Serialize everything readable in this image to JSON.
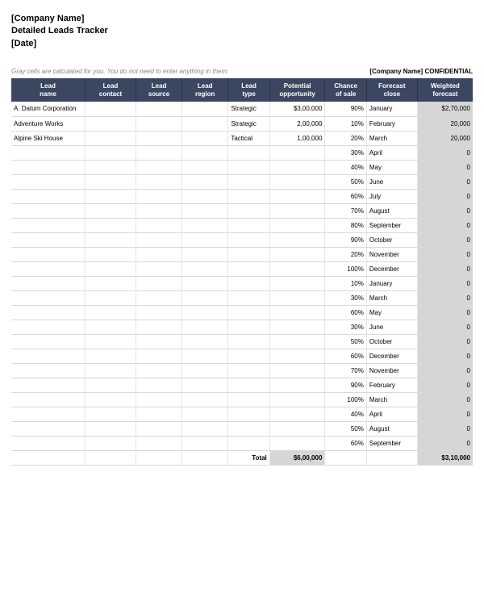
{
  "header": {
    "company": "[Company Name]",
    "title": "Detailed Leads Tracker",
    "date": "[Date]"
  },
  "subhead": {
    "gray_note": "Gray cells are calculated for you. You do not need to enter anything in them.",
    "conf_company": "[Company Name]",
    "conf_label": "CONFIDENTIAL"
  },
  "columns": [
    "Lead name",
    "Lead contact",
    "Lead source",
    "Lead region",
    "Lead type",
    "Potential opportunity",
    "Chance of sale",
    "Forecast close",
    "Weighted forecast"
  ],
  "rows": [
    {
      "name": "A. Datum Corporation",
      "contact": "",
      "source": "",
      "region": "",
      "type": "Strategic",
      "opp": "$3,00,000",
      "chance": "90%",
      "close": "January",
      "weighted": "$2,70,000"
    },
    {
      "name": "Adventure Works",
      "contact": "",
      "source": "",
      "region": "",
      "type": "Strategic",
      "opp": "2,00,000",
      "chance": "10%",
      "close": "February",
      "weighted": "20,000"
    },
    {
      "name": "Alpine Ski House",
      "contact": "",
      "source": "",
      "region": "",
      "type": "Tactical",
      "opp": "1,00,000",
      "chance": "20%",
      "close": "March",
      "weighted": "20,000"
    },
    {
      "name": "",
      "contact": "",
      "source": "",
      "region": "",
      "type": "",
      "opp": "",
      "chance": "30%",
      "close": "April",
      "weighted": "0"
    },
    {
      "name": "",
      "contact": "",
      "source": "",
      "region": "",
      "type": "",
      "opp": "",
      "chance": "40%",
      "close": "May",
      "weighted": "0"
    },
    {
      "name": "",
      "contact": "",
      "source": "",
      "region": "",
      "type": "",
      "opp": "",
      "chance": "50%",
      "close": "June",
      "weighted": "0"
    },
    {
      "name": "",
      "contact": "",
      "source": "",
      "region": "",
      "type": "",
      "opp": "",
      "chance": "60%",
      "close": "July",
      "weighted": "0"
    },
    {
      "name": "",
      "contact": "",
      "source": "",
      "region": "",
      "type": "",
      "opp": "",
      "chance": "70%",
      "close": "August",
      "weighted": "0"
    },
    {
      "name": "",
      "contact": "",
      "source": "",
      "region": "",
      "type": "",
      "opp": "",
      "chance": "80%",
      "close": "September",
      "weighted": "0"
    },
    {
      "name": "",
      "contact": "",
      "source": "",
      "region": "",
      "type": "",
      "opp": "",
      "chance": "90%",
      "close": "October",
      "weighted": "0"
    },
    {
      "name": "",
      "contact": "",
      "source": "",
      "region": "",
      "type": "",
      "opp": "",
      "chance": "20%",
      "close": "November",
      "weighted": "0"
    },
    {
      "name": "",
      "contact": "",
      "source": "",
      "region": "",
      "type": "",
      "opp": "",
      "chance": "100%",
      "close": "December",
      "weighted": "0"
    },
    {
      "name": "",
      "contact": "",
      "source": "",
      "region": "",
      "type": "",
      "opp": "",
      "chance": "10%",
      "close": "January",
      "weighted": "0"
    },
    {
      "name": "",
      "contact": "",
      "source": "",
      "region": "",
      "type": "",
      "opp": "",
      "chance": "30%",
      "close": "March",
      "weighted": "0"
    },
    {
      "name": "",
      "contact": "",
      "source": "",
      "region": "",
      "type": "",
      "opp": "",
      "chance": "60%",
      "close": "May",
      "weighted": "0"
    },
    {
      "name": "",
      "contact": "",
      "source": "",
      "region": "",
      "type": "",
      "opp": "",
      "chance": "30%",
      "close": "June",
      "weighted": "0"
    },
    {
      "name": "",
      "contact": "",
      "source": "",
      "region": "",
      "type": "",
      "opp": "",
      "chance": "50%",
      "close": "October",
      "weighted": "0"
    },
    {
      "name": "",
      "contact": "",
      "source": "",
      "region": "",
      "type": "",
      "opp": "",
      "chance": "60%",
      "close": "December",
      "weighted": "0"
    },
    {
      "name": "",
      "contact": "",
      "source": "",
      "region": "",
      "type": "",
      "opp": "",
      "chance": "70%",
      "close": "November",
      "weighted": "0"
    },
    {
      "name": "",
      "contact": "",
      "source": "",
      "region": "",
      "type": "",
      "opp": "",
      "chance": "90%",
      "close": "February",
      "weighted": "0"
    },
    {
      "name": "",
      "contact": "",
      "source": "",
      "region": "",
      "type": "",
      "opp": "",
      "chance": "100%",
      "close": "March",
      "weighted": "0"
    },
    {
      "name": "",
      "contact": "",
      "source": "",
      "region": "",
      "type": "",
      "opp": "",
      "chance": "40%",
      "close": "April",
      "weighted": "0"
    },
    {
      "name": "",
      "contact": "",
      "source": "",
      "region": "",
      "type": "",
      "opp": "",
      "chance": "50%",
      "close": "August",
      "weighted": "0"
    },
    {
      "name": "",
      "contact": "",
      "source": "",
      "region": "",
      "type": "",
      "opp": "",
      "chance": "60%",
      "close": "September",
      "weighted": "0"
    }
  ],
  "total": {
    "label": "Total",
    "opp": "$6,00,000",
    "weighted": "$3,10,000"
  },
  "styling": {
    "header_bg": "#3b4761",
    "header_text": "#ffffff",
    "calc_bg": "#d6d6d6",
    "border": "#d9d9d9",
    "body_font_size": 8,
    "header_font_size": 11
  }
}
